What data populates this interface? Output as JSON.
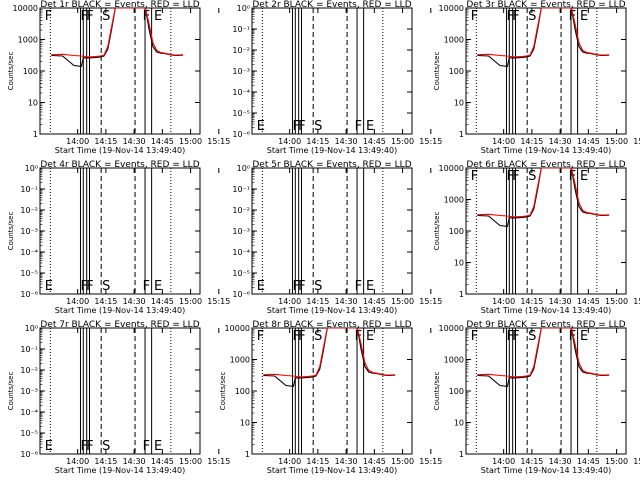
{
  "colors": {
    "events": "#000000",
    "lld": "#ff0000",
    "axes": "#000000",
    "background": "#ffffff"
  },
  "chart_data": [
    {
      "type": "line",
      "id": "det1r",
      "title": "Det 1r BLACK = Events, RED = LLD",
      "ylabel": "Counts/sec",
      "xlabel": "Start Time (19-Nov-14 13:49:40)",
      "xticks": [
        "14:00",
        "14:15",
        "14:30",
        "14:45",
        "15:00",
        "15:15"
      ],
      "yscale": "log",
      "ylim": [
        1,
        10000
      ],
      "yticks": [
        "1",
        "10",
        "100",
        "1000",
        "10000"
      ],
      "has_data": true,
      "flags": [
        "F",
        "F",
        "F",
        "S",
        "F",
        "E"
      ]
    },
    {
      "type": "line",
      "id": "det2r",
      "title": "Det 2r BLACK = Events, RED = LLD",
      "ylabel": "",
      "xlabel": "Start Time (19-Nov-14 13:49:40)",
      "xticks": [
        "14:00",
        "14:15",
        "14:30",
        "14:45",
        "15:00",
        "15:15"
      ],
      "yscale": "log",
      "ylim": [
        1e-06,
        1
      ],
      "yticks": [
        "10⁰",
        "10⁻¹",
        "10⁻²",
        "10⁻³",
        "10⁻⁴",
        "10⁻⁵",
        "10⁻⁶"
      ],
      "has_data": false,
      "flags": [
        "E",
        "F",
        "F",
        "S",
        "F",
        "E"
      ]
    },
    {
      "type": "line",
      "id": "det3r",
      "title": "Det 3r BLACK = Events, RED = LLD",
      "ylabel": "Counts/sec",
      "xlabel": "Start Time (19-Nov-14 13:49:40)",
      "xticks": [
        "14:00",
        "14:15",
        "14:30",
        "14:45",
        "15:00",
        "15:15"
      ],
      "yscale": "log",
      "ylim": [
        1,
        10000
      ],
      "yticks": [
        "1",
        "10",
        "100",
        "1000",
        "10000"
      ],
      "has_data": true,
      "flags": [
        "F",
        "F",
        "F",
        "S",
        "F",
        "E"
      ]
    },
    {
      "type": "line",
      "id": "det4r",
      "title": "Det 4r BLACK = Events, RED = LLD",
      "ylabel": "Counts/sec",
      "xlabel": "Start Time (19-Nov-14 13:49:40)",
      "xticks": [
        "14:00",
        "14:15",
        "14:30",
        "14:45",
        "15:00",
        "15:15"
      ],
      "yscale": "log",
      "ylim": [
        1e-06,
        1
      ],
      "yticks": [
        "10⁰",
        "10⁻¹",
        "10⁻²",
        "10⁻³",
        "10⁻⁴",
        "10⁻⁵",
        "10⁻⁶"
      ],
      "has_data": false,
      "flags": [
        "E",
        "F",
        "F",
        "S",
        "F",
        "E"
      ]
    },
    {
      "type": "line",
      "id": "det5r",
      "title": "Det 5r BLACK = Events, RED = LLD",
      "ylabel": "",
      "xlabel": "Start Time (19-Nov-14 13:49:40)",
      "xticks": [
        "14:00",
        "14:15",
        "14:30",
        "14:45",
        "15:00",
        "15:15"
      ],
      "yscale": "log",
      "ylim": [
        1e-06,
        1
      ],
      "yticks": [
        "10⁰",
        "10⁻¹",
        "10⁻²",
        "10⁻³",
        "10⁻⁴",
        "10⁻⁵",
        "10⁻⁶"
      ],
      "has_data": false,
      "flags": [
        "E",
        "F",
        "F",
        "S",
        "F",
        "E"
      ]
    },
    {
      "type": "line",
      "id": "det6r",
      "title": "Det 6r BLACK = Events, RED = LLD",
      "ylabel": "Counts/sec",
      "xlabel": "Start Time (19-Nov-14 13:49:40)",
      "xticks": [
        "14:00",
        "14:15",
        "14:30",
        "14:45",
        "15:00",
        "15:15"
      ],
      "yscale": "log",
      "ylim": [
        1,
        10000
      ],
      "yticks": [
        "1",
        "10",
        "100",
        "1000",
        "10000"
      ],
      "has_data": true,
      "flags": [
        "F",
        "F",
        "F",
        "S",
        "F",
        "E"
      ]
    },
    {
      "type": "line",
      "id": "det7r",
      "title": "Det 7r BLACK = Events, RED = LLD",
      "ylabel": "Counts/sec",
      "xlabel": "Start Time (19-Nov-14 13:49:40)",
      "xticks": [
        "14:00",
        "14:15",
        "14:30",
        "14:45",
        "15:00",
        "15:15"
      ],
      "yscale": "log",
      "ylim": [
        1e-06,
        1
      ],
      "yticks": [
        "10⁰",
        "10⁻¹",
        "10⁻²",
        "10⁻³",
        "10⁻⁴",
        "10⁻⁵",
        "10⁻⁶"
      ],
      "has_data": false,
      "flags": [
        "E",
        "F",
        "F",
        "S",
        "F",
        "E"
      ]
    },
    {
      "type": "line",
      "id": "det8r",
      "title": "Det 8r BLACK = Events, RED = LLD",
      "ylabel": "Counts/sec",
      "xlabel": "Start Time (19-Nov-14 13:49:40)",
      "xticks": [
        "14:00",
        "14:15",
        "14:30",
        "14:45",
        "15:00",
        "15:15"
      ],
      "yscale": "log",
      "ylim": [
        1,
        10000
      ],
      "yticks": [
        "1",
        "10",
        "100",
        "1000",
        "10000"
      ],
      "has_data": true,
      "flags": [
        "F",
        "F",
        "F",
        "S",
        "F",
        "E"
      ]
    },
    {
      "type": "line",
      "id": "det9r",
      "title": "Det 9r BLACK = Events, RED = LLD",
      "ylabel": "Counts/sec",
      "xlabel": "Start Time (19-Nov-14 13:49:40)",
      "xticks": [
        "14:00",
        "14:15",
        "14:30",
        "14:45",
        "15:00",
        "15:15"
      ],
      "yscale": "log",
      "ylim": [
        1,
        10000
      ],
      "yticks": [
        "1",
        "10",
        "100",
        "1000",
        "10000"
      ],
      "has_data": true,
      "flags": [
        "F",
        "F",
        "F",
        "S",
        "F",
        "E"
      ]
    }
  ],
  "series_time_min": [
    -4,
    2,
    8,
    12,
    13,
    16,
    20,
    22,
    24,
    26,
    28,
    30,
    32,
    34,
    36,
    38,
    40,
    42,
    44,
    46,
    48,
    50,
    52,
    54,
    56,
    58,
    60,
    62,
    64,
    66
  ],
  "series_events": [
    310,
    300,
    150,
    140,
    260,
    260,
    270,
    280,
    300,
    500,
    2000,
    10000,
    10000,
    10000,
    10000,
    10000,
    10000,
    10000,
    10000,
    10000,
    2000,
    600,
    400,
    370,
    360,
    340,
    320,
    310,
    310,
    320
  ],
  "series_lld": [
    330,
    340,
    310,
    300,
    290,
    280,
    290,
    300,
    320,
    600,
    2500,
    10000,
    10000,
    10000,
    10000,
    10000,
    10000,
    10000,
    10000,
    10000,
    3000,
    800,
    450,
    390,
    370,
    350,
    330,
    320,
    320,
    330
  ],
  "vlines_solid_min": [
    11.5,
    13,
    14.8,
    16.3,
    45.8,
    49.3
  ],
  "vlines_dashed_min": [
    22.5,
    40.5
  ],
  "vlines_dotted_min": [
    -4.5,
    59.5
  ]
}
